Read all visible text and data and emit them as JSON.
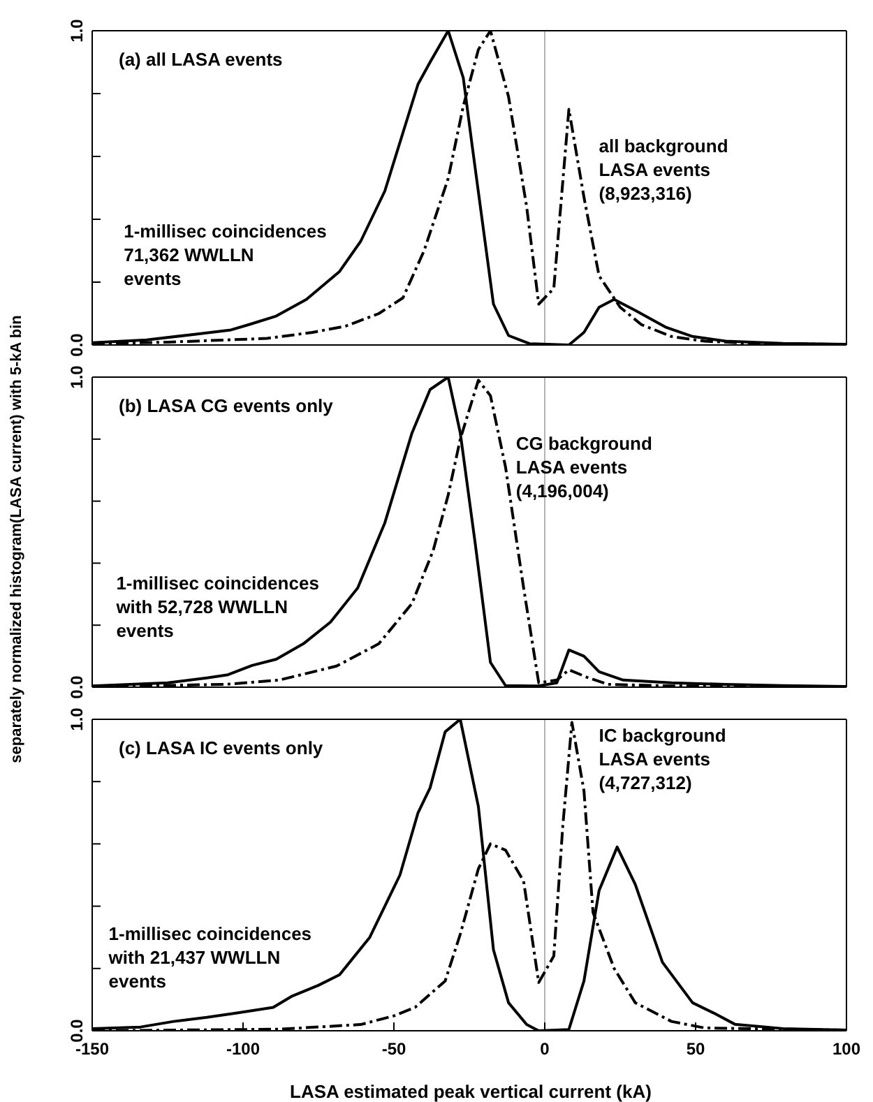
{
  "chart_data": [
    {
      "type": "line",
      "title": "(a) all LASA events",
      "xlim": [
        -150,
        100
      ],
      "xticks": [
        -150,
        -100,
        -50,
        0,
        50,
        100
      ],
      "ylim": [
        0,
        1
      ],
      "yticks": [
        {
          "value": 0,
          "label": "0.0"
        },
        {
          "value": 0.2,
          "label": null
        },
        {
          "value": 0.4,
          "label": null
        },
        {
          "value": 0.6,
          "label": null
        },
        {
          "value": 0.8,
          "label": null
        },
        {
          "value": 1,
          "label": "1.0"
        }
      ],
      "tick_labels": "y",
      "marker": "none",
      "ref_lines": [
        {
          "axis": "x",
          "value": 0,
          "label": null,
          "color": "#b4b4b4"
        }
      ],
      "series": [
        {
          "name": "1-millisec coincidences\n71,362 WWLLN\nevents",
          "color": "#000000",
          "line_style": "solid",
          "x": [
            -150,
            -132,
            -116,
            -104,
            -98,
            -89,
            -79,
            -68,
            -61,
            -53,
            -42,
            -38,
            -32,
            -27,
            -24,
            -17,
            -12,
            -5,
            8,
            13,
            18,
            23,
            30,
            40,
            49,
            60,
            79,
            100
          ],
          "values": [
            0.007,
            0.016,
            0.034,
            0.048,
            0.065,
            0.092,
            0.145,
            0.234,
            0.33,
            0.49,
            0.83,
            0.9,
            1.0,
            0.85,
            0.63,
            0.13,
            0.03,
            0.004,
            0,
            0.04,
            0.12,
            0.145,
            0.11,
            0.057,
            0.027,
            0.012,
            0.005,
            0.002
          ]
        },
        {
          "name": "all background\nLASA events\n(8,923,316)",
          "color": "#000000",
          "line_style": "dashed",
          "x": [
            -150,
            -125,
            -92,
            -77,
            -66,
            -55,
            -47,
            -40,
            -32,
            -27,
            -22,
            -18,
            -12,
            -6,
            -2,
            3,
            8,
            13,
            18,
            25,
            32,
            42,
            53,
            69,
            100
          ],
          "values": [
            0.004,
            0.009,
            0.021,
            0.04,
            0.06,
            0.1,
            0.15,
            0.3,
            0.53,
            0.76,
            0.94,
            1.0,
            0.79,
            0.44,
            0.13,
            0.18,
            0.75,
            0.47,
            0.22,
            0.12,
            0.065,
            0.027,
            0.012,
            0.005,
            0.002
          ]
        }
      ]
    },
    {
      "type": "line",
      "title": "(b) LASA CG events only",
      "ylabel": "separately normalized histogram(LASA current) with 5-kA bin",
      "xlim": [
        -150,
        100
      ],
      "xticks": [
        -150,
        -100,
        -50,
        0,
        50,
        100
      ],
      "ylim": [
        0,
        1
      ],
      "yticks": [
        {
          "value": 0,
          "label": "0.0"
        },
        {
          "value": 0.2,
          "label": null
        },
        {
          "value": 0.4,
          "label": null
        },
        {
          "value": 0.6,
          "label": null
        },
        {
          "value": 0.8,
          "label": null
        },
        {
          "value": 1,
          "label": "1.0"
        }
      ],
      "tick_labels": "y",
      "marker": "none",
      "ref_lines": [
        {
          "axis": "x",
          "value": 0,
          "label": null,
          "color": "#b4b4b4"
        }
      ],
      "series": [
        {
          "name": "1-millisec coincidences\nwith 52,728 WWLLN\nevents",
          "color": "#000000",
          "line_style": "solid",
          "x": [
            -150,
            -125,
            -112,
            -105,
            -97,
            -89,
            -80,
            -71,
            -62,
            -53,
            -44,
            -38,
            -32,
            -28,
            -23,
            -18,
            -13,
            -2,
            4,
            8,
            13,
            18,
            26,
            42,
            60,
            79,
            100
          ],
          "values": [
            0.004,
            0.014,
            0.03,
            0.04,
            0.07,
            0.09,
            0.14,
            0.21,
            0.32,
            0.53,
            0.82,
            0.96,
            1.0,
            0.82,
            0.46,
            0.08,
            0.005,
            0.004,
            0.014,
            0.12,
            0.1,
            0.05,
            0.023,
            0.014,
            0.009,
            0.005,
            0.002
          ]
        },
        {
          "name": "CG background\nLASA events\n(4,196,004)",
          "color": "#000000",
          "line_style": "dashed",
          "x": [
            -150,
            -106,
            -88,
            -69,
            -55,
            -44,
            -37,
            -32,
            -28,
            -22,
            -18,
            -13,
            -7,
            -2,
            4,
            8,
            14,
            21,
            42,
            100
          ],
          "values": [
            0.002,
            0.009,
            0.023,
            0.068,
            0.14,
            0.27,
            0.44,
            0.62,
            0.8,
            0.99,
            0.94,
            0.71,
            0.32,
            0.014,
            0.023,
            0.056,
            0.032,
            0.009,
            0.004,
            0.002
          ]
        }
      ]
    },
    {
      "type": "line",
      "title": "(c) LASA IC events only",
      "xlabel": "LASA estimated peak vertical current (kA)",
      "xlim": [
        -150,
        100
      ],
      "xticks": [
        -150,
        -100,
        -50,
        0,
        50,
        100
      ],
      "ylim": [
        0,
        1
      ],
      "yticks": [
        {
          "value": 0,
          "label": "0.0"
        },
        {
          "value": 0.2,
          "label": null
        },
        {
          "value": 0.4,
          "label": null
        },
        {
          "value": 0.6,
          "label": null
        },
        {
          "value": 0.8,
          "label": null
        },
        {
          "value": 1,
          "label": "1.0"
        }
      ],
      "marker": "none",
      "ref_lines": [
        {
          "axis": "x",
          "value": 0,
          "label": null,
          "color": "#b4b4b4"
        }
      ],
      "series": [
        {
          "name": "1-millisec coincidences\nwith 21,437 WWLLN\nevents",
          "color": "#000000",
          "line_style": "solid",
          "x": [
            -150,
            -134,
            -123,
            -112,
            -102,
            -90,
            -84,
            -75,
            -68,
            -58,
            -48,
            -42,
            -38,
            -33,
            -28,
            -22,
            -17,
            -12,
            -6,
            -2,
            8,
            13,
            18,
            24,
            30,
            39,
            49,
            56,
            63,
            79,
            100
          ],
          "values": [
            0.007,
            0.012,
            0.03,
            0.043,
            0.057,
            0.075,
            0.11,
            0.146,
            0.18,
            0.3,
            0.5,
            0.7,
            0.78,
            0.96,
            1.0,
            0.72,
            0.26,
            0.09,
            0.02,
            0,
            0.004,
            0.16,
            0.45,
            0.59,
            0.47,
            0.22,
            0.09,
            0.057,
            0.021,
            0.007,
            0.002
          ]
        },
        {
          "name": "IC background\nLASA events\n(4,727,312)",
          "color": "#000000",
          "line_style": "dashed",
          "x": [
            -150,
            -88,
            -61,
            -50,
            -43,
            -33,
            -28,
            -22,
            -18,
            -13,
            -7,
            -2,
            3,
            6,
            9,
            13,
            16,
            23,
            30,
            42,
            53,
            100
          ],
          "values": [
            0,
            0.005,
            0.02,
            0.048,
            0.075,
            0.16,
            0.31,
            0.52,
            0.6,
            0.58,
            0.48,
            0.155,
            0.24,
            0.66,
            0.99,
            0.77,
            0.38,
            0.2,
            0.09,
            0.03,
            0.009,
            0.002
          ]
        }
      ]
    }
  ]
}
